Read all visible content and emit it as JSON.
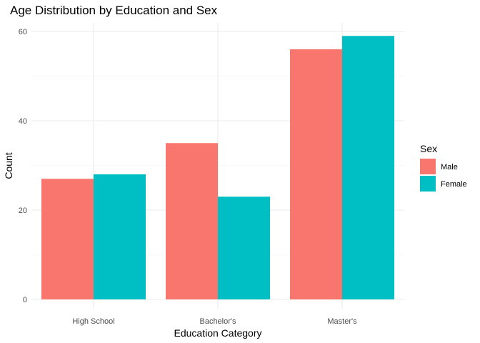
{
  "chart_data": {
    "type": "bar",
    "title": "Age Distribution by Education and Sex",
    "xlabel": "Education Category",
    "ylabel": "Count",
    "categories": [
      "High School",
      "Bachelor's",
      "Master's"
    ],
    "series": [
      {
        "name": "Male",
        "color": "#F8766D",
        "values": [
          27,
          35,
          56
        ]
      },
      {
        "name": "Female",
        "color": "#00BFC4",
        "values": [
          28,
          23,
          59
        ]
      }
    ],
    "ylim": [
      0,
      60
    ],
    "yticks": [
      0,
      20,
      40,
      60
    ],
    "grid": true,
    "legend": {
      "title": "Sex",
      "position": "right"
    }
  }
}
